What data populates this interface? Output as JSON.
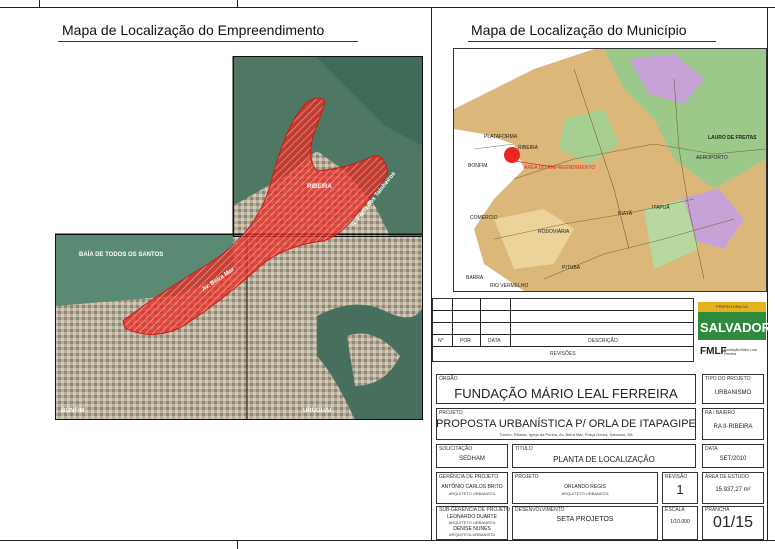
{
  "left_map": {
    "title": "Mapa de Localização do Empreendimento",
    "labels": {
      "ribeira": "RIBEIRA",
      "av_porto": "R. Porto dos Tainheiros",
      "baia": "BAÍA DE TODOS OS SANTOS",
      "av_beira_mar": "Av. Beira Mar",
      "bonfim": "BONFIM",
      "uruguai": "URUGUAI"
    }
  },
  "right_map": {
    "title": "Mapa de Localização do Município",
    "labels": {
      "plataforma": "PLATAFORMA",
      "ribeira": "RIBEIRA",
      "bonfim": "BONFIM",
      "localizacao": "ÁREA DO EMPREENDIMENTO",
      "lauro": "LAURO DE FREITAS",
      "aeroporto": "AEROPORTO",
      "comercio": "COMÉRCIO",
      "rodoviaria": "RODOVIÁRIA",
      "piata": "PIATÃ",
      "itapua": "ITAPUÃ",
      "barra": "BARRA",
      "pituba": "PITUBA",
      "rio_vermelho": "RIO VERMELHO"
    }
  },
  "revisions": {
    "headers": [
      "N°",
      "POR",
      "DATA",
      "DESCRIÇÃO"
    ],
    "label": "REVISÕES"
  },
  "logo": {
    "prefeitura": "PREFEITURA DA",
    "city": "SALVADOR",
    "fmlf": "FMLF",
    "fmlf_sub": "Fundação Mário Leal Ferreira"
  },
  "title_block": {
    "orgao_label": "ÓRGÃO",
    "orgao": "FUNDAÇÃO MÁRIO LEAL FERREIRA",
    "tipo_label": "TIPO DO PROJETO",
    "tipo": "URBANISMO",
    "projeto_label": "PROJETO",
    "projeto": "PROPOSTA URBANÍSTICA P/ ORLA DE ITAPAGIPE",
    "projeto_sub": "Trecho: Ribeira, Igreja da Penha, Av. Beira Mar, Praça Dórea, Salvador, BA",
    "ra_label": "RA / BAIRRO",
    "ra": "RA II-RIBEIRA",
    "solicitacao_label": "SOLICITAÇÃO",
    "solicitacao": "SEDHAM",
    "titulo_label": "TÍTULO",
    "titulo": "PLANTA DE LOCALIZAÇÃO",
    "data_label": "DATA",
    "data": "SET/2010",
    "ger_label": "GERÊNCIA DE PROJETO",
    "ger": "ANTÔNIO CARLOS BRITO",
    "ger_sub": "ARQUITETO URBANISTA",
    "proj_label": "PROJETO",
    "proj": "ORLANDO REGIS",
    "proj_sub": "ARQUITETO URBANISTA",
    "revisao_label": "REVISÃO",
    "revisao": "1",
    "area_label": "ÁREA DE ESTUDO",
    "area": "15.937,27 m²",
    "subger_label": "SUB-GERÊNCIA DE PROJETO",
    "subger1": "LEONARDO DUARTE",
    "subger1_sub": "ARQUITETO URBANISTA",
    "subger2": "DENISE NUNES",
    "subger2_sub": "ARQUITETA URBANISTA",
    "desenv_label": "DESENVOLVIMENTO",
    "desenv": "SETA PROJETOS",
    "escala_label": "ESCALA",
    "escala": "1/10.000",
    "prancha_label": "PRANCHA",
    "prancha": "01/15"
  },
  "colors": {
    "highlight": "#e8261f",
    "sea": "#4f7a63",
    "land": "#c9c0ae",
    "muni_land": "#d9b476",
    "muni_green": "#9cc98a"
  }
}
